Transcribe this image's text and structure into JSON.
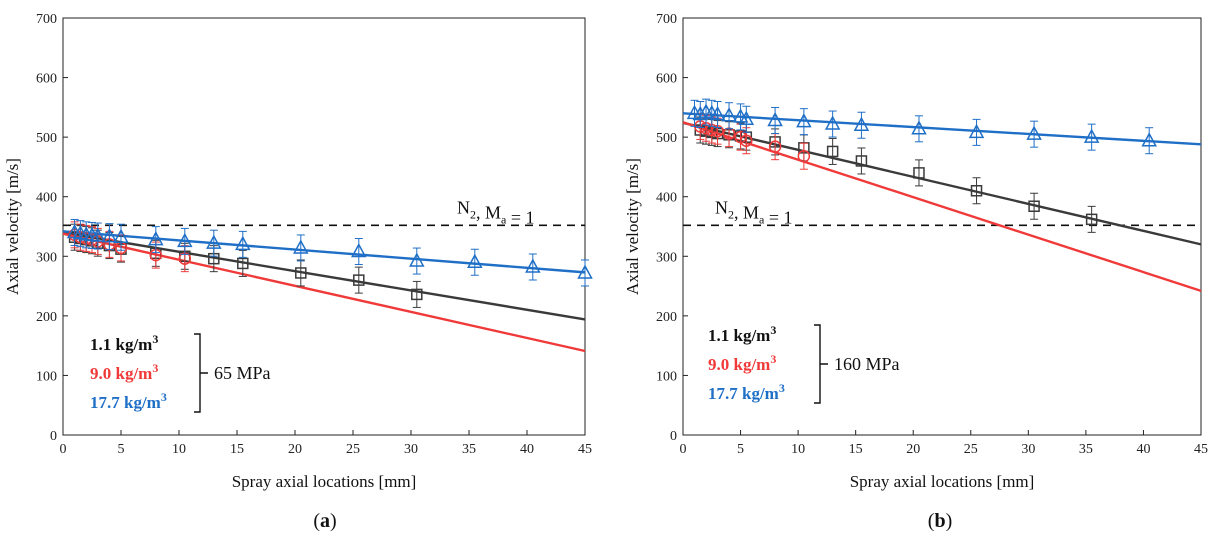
{
  "colors": {
    "s1": "#3a3a3a",
    "s2": "#f03a3a",
    "s3": "#1f6fc7",
    "ref": "#111111"
  },
  "chart_data": [
    {
      "type": "scatter",
      "caption_open": "(",
      "caption_letter": "a",
      "caption_close": ")",
      "xlabel": "Spray axial locations [mm]",
      "ylabel": "Axial velocity [m/s]",
      "xlim": [
        0,
        45
      ],
      "ylim": [
        0,
        700
      ],
      "xticks": [
        0,
        5,
        10,
        15,
        20,
        25,
        30,
        35,
        40,
        45
      ],
      "yticks": [
        0,
        100,
        200,
        300,
        400,
        500,
        600,
        700
      ],
      "ref_line": {
        "y": 352,
        "label_main": "N",
        "label_sub1": "2",
        "label_mid": ", M",
        "label_sub2": "a",
        "label_end": " = 1"
      },
      "pressure_label": "65 MPa",
      "series": [
        {
          "name": "1.1 kg/m",
          "sup": "3",
          "color_key": "s1",
          "marker": "square",
          "x": [
            1,
            1.5,
            2,
            2.5,
            3,
            4,
            5,
            8,
            10.5,
            13,
            15.5,
            20.5,
            25.5,
            30.5
          ],
          "y": [
            332,
            330,
            328,
            326,
            322,
            318,
            312,
            305,
            300,
            296,
            288,
            272,
            260,
            236
          ],
          "fit": [
            [
              0,
              340
            ],
            [
              45,
              194
            ]
          ]
        },
        {
          "name": "9.0 kg/m",
          "sup": "3",
          "color_key": "s2",
          "marker": "circle",
          "x": [
            1,
            1.5,
            2,
            2.5,
            3,
            4,
            5,
            8,
            10.5
          ],
          "y": [
            336,
            332,
            330,
            328,
            325,
            320,
            314,
            302,
            296
          ],
          "fit": [
            [
              0,
              338
            ],
            [
              45,
              141
            ]
          ]
        },
        {
          "name": "17.7 kg/m",
          "sup": "3",
          "color_key": "s3",
          "marker": "triangle",
          "x": [
            1,
            1.5,
            2,
            2.5,
            3,
            4,
            5,
            8,
            10.5,
            13,
            15.5,
            20.5,
            25.5,
            30.5,
            35.5,
            40.5,
            45
          ],
          "y": [
            340,
            338,
            336,
            335,
            334,
            333,
            332,
            328,
            325,
            322,
            320,
            314,
            308,
            292,
            290,
            282,
            272
          ],
          "fit": [
            [
              0,
              342
            ],
            [
              45,
              273
            ]
          ]
        }
      ]
    },
    {
      "type": "scatter",
      "caption_open": "(",
      "caption_letter": "b",
      "caption_close": ")",
      "xlabel": "Spray axial locations [mm]",
      "ylabel": "Axial velocity [m/s]",
      "xlim": [
        0,
        45
      ],
      "ylim": [
        0,
        700
      ],
      "xticks": [
        0,
        5,
        10,
        15,
        20,
        25,
        30,
        35,
        40,
        45
      ],
      "yticks": [
        0,
        100,
        200,
        300,
        400,
        500,
        600,
        700
      ],
      "ref_line": {
        "y": 352,
        "label_main": "N",
        "label_sub1": "2",
        "label_mid": ", M",
        "label_sub2": "a",
        "label_end": " = 1"
      },
      "pressure_label": "160 MPa",
      "series": [
        {
          "name": "1.1 kg/m",
          "sup": "3",
          "color_key": "s1",
          "marker": "square",
          "x": [
            1.5,
            2,
            2.5,
            3,
            4,
            5,
            5.5,
            8,
            10.5,
            13,
            15.5,
            20.5,
            25.5,
            30.5,
            35.5
          ],
          "y": [
            512,
            510,
            508,
            506,
            504,
            502,
            500,
            492,
            482,
            476,
            460,
            440,
            410,
            384,
            362
          ],
          "fit": [
            [
              0,
              524
            ],
            [
              45,
              320
            ]
          ]
        },
        {
          "name": "9.0 kg/m",
          "sup": "3",
          "color_key": "s2",
          "marker": "circle",
          "x": [
            1.5,
            2,
            2.5,
            3,
            4,
            5,
            5.5,
            8,
            10.5
          ],
          "y": [
            518,
            515,
            512,
            510,
            506,
            500,
            494,
            484,
            468
          ],
          "fit": [
            [
              0,
              525
            ],
            [
              45,
              242
            ]
          ]
        },
        {
          "name": "17.7 kg/m",
          "sup": "3",
          "color_key": "s3",
          "marker": "triangle",
          "x": [
            1,
            1.5,
            2,
            2.5,
            3,
            4,
            5,
            5.5,
            8,
            10.5,
            13,
            15.5,
            20.5,
            25.5,
            30.5,
            35.5,
            40.5
          ],
          "y": [
            540,
            538,
            542,
            540,
            538,
            536,
            534,
            530,
            528,
            526,
            522,
            520,
            514,
            508,
            505,
            500,
            494
          ],
          "fit": [
            [
              0,
              540
            ],
            [
              45,
              488
            ]
          ]
        }
      ]
    }
  ]
}
